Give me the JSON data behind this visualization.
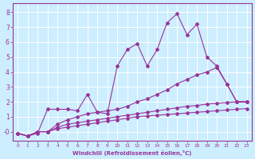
{
  "background_color": "#cceeff",
  "grid_color": "#ffffff",
  "line_color": "#993399",
  "xlabel": "Windchill (Refroidissement éolien,°C)",
  "xlabel_color": "#993399",
  "ylabel_color": "#993399",
  "xlim": [
    -0.5,
    23.5
  ],
  "ylim": [
    -0.6,
    8.6
  ],
  "yticks": [
    0,
    1,
    2,
    3,
    4,
    5,
    6,
    7,
    8
  ],
  "xticks": [
    0,
    1,
    2,
    3,
    4,
    5,
    6,
    7,
    8,
    9,
    10,
    11,
    12,
    13,
    14,
    15,
    16,
    17,
    18,
    19,
    20,
    21,
    22,
    23
  ],
  "line1_x": [
    0,
    1,
    2,
    3,
    4,
    5,
    6,
    7,
    8,
    9,
    10,
    11,
    12,
    13,
    14,
    15,
    16,
    17,
    18,
    19,
    20,
    21,
    22,
    23
  ],
  "line1_y": [
    -0.1,
    -0.3,
    -0.1,
    1.5,
    1.5,
    1.5,
    1.4,
    2.5,
    1.3,
    1.2,
    4.4,
    5.5,
    5.9,
    4.4,
    5.5,
    7.3,
    7.9,
    6.5,
    7.2,
    5.0,
    4.4,
    3.2,
    2.0,
    2.0
  ],
  "line2_x": [
    0,
    1,
    2,
    3,
    4,
    5,
    6,
    7,
    8,
    9,
    10,
    11,
    12,
    13,
    14,
    15,
    16,
    17,
    18,
    19,
    20,
    21,
    22,
    23
  ],
  "line2_y": [
    -0.1,
    -0.3,
    0.0,
    0.0,
    0.5,
    0.8,
    1.0,
    1.2,
    1.3,
    1.4,
    1.5,
    1.7,
    2.0,
    2.2,
    2.5,
    2.8,
    3.2,
    3.5,
    3.8,
    4.0,
    4.3,
    3.2,
    2.0,
    2.0
  ],
  "line3_x": [
    0,
    1,
    2,
    3,
    4,
    5,
    6,
    7,
    8,
    9,
    10,
    11,
    12,
    13,
    14,
    15,
    16,
    17,
    18,
    19,
    20,
    21,
    22,
    23
  ],
  "line3_y": [
    -0.1,
    -0.3,
    0.0,
    0.0,
    0.3,
    0.5,
    0.6,
    0.7,
    0.8,
    0.9,
    1.0,
    1.1,
    1.2,
    1.3,
    1.4,
    1.5,
    1.6,
    1.7,
    1.75,
    1.85,
    1.9,
    1.95,
    2.0,
    2.0
  ],
  "line4_x": [
    0,
    1,
    2,
    3,
    4,
    5,
    6,
    7,
    8,
    9,
    10,
    11,
    12,
    13,
    14,
    15,
    16,
    17,
    18,
    19,
    20,
    21,
    22,
    23
  ],
  "line4_y": [
    -0.1,
    -0.3,
    0.0,
    0.0,
    0.2,
    0.3,
    0.4,
    0.5,
    0.6,
    0.7,
    0.8,
    0.9,
    1.0,
    1.05,
    1.1,
    1.15,
    1.2,
    1.25,
    1.3,
    1.35,
    1.4,
    1.45,
    1.5,
    1.55
  ]
}
